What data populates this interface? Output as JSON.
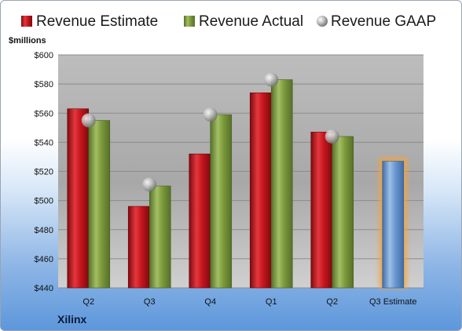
{
  "company": "Xilinx",
  "colors": {
    "estimate": "#c8161e",
    "actual": "#7d9a3c",
    "gaap": "#a9a9a9",
    "q3_estimate": "#6b98d1"
  },
  "chart_data": {
    "type": "bar",
    "ylabel": "$millions",
    "ylim": [
      440,
      600
    ],
    "yticks": [
      "$440",
      "$460",
      "$480",
      "$500",
      "$520",
      "$540",
      "$560",
      "$580",
      "$600"
    ],
    "categories": [
      "Q2",
      "Q3",
      "Q4",
      "Q1",
      "Q2",
      "Q3 Estimate"
    ],
    "legend_position": "top",
    "grid": true,
    "series": [
      {
        "name": "Revenue Estimate",
        "values": [
          563,
          496,
          532,
          574,
          547,
          null
        ]
      },
      {
        "name": "Revenue Actual",
        "values": [
          555,
          510,
          559,
          583,
          544,
          null
        ]
      },
      {
        "name": "Revenue GAAP",
        "marker": "sphere",
        "values": [
          555,
          511,
          559,
          583,
          544,
          null
        ]
      }
    ],
    "current_estimate": {
      "category": "Q3 Estimate",
      "value": 527
    }
  }
}
